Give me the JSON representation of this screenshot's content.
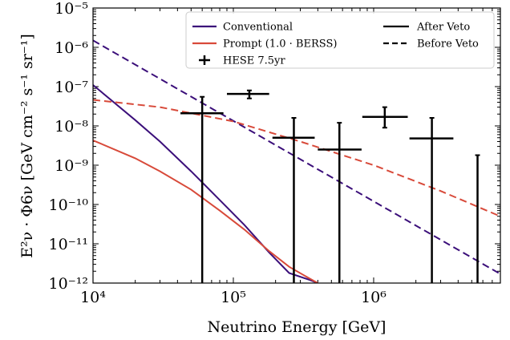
{
  "chart_data": {
    "type": "line",
    "x_scale": "log",
    "y_scale": "log",
    "xlim": [
      10000,
      8000000
    ],
    "ylim": [
      1e-12,
      1e-05
    ],
    "xlabel": "Neutrino Energy [GeV]",
    "ylabel": "E²ν · Φ6ν [GeV cm⁻² s⁻¹ sr⁻¹]",
    "x_ticks": [
      {
        "value": 10000,
        "label": "10⁴"
      },
      {
        "value": 100000,
        "label": "10⁵"
      },
      {
        "value": 1000000,
        "label": "10⁶"
      }
    ],
    "y_ticks": [
      {
        "value": 1e-12,
        "label": "10⁻¹²"
      },
      {
        "value": 1e-11,
        "label": "10⁻¹¹"
      },
      {
        "value": 1e-10,
        "label": "10⁻¹⁰"
      },
      {
        "value": 1e-09,
        "label": "10⁻⁹"
      },
      {
        "value": 1e-08,
        "label": "10⁻⁸"
      },
      {
        "value": 1e-07,
        "label": "10⁻⁷"
      },
      {
        "value": 1e-06,
        "label": "10⁻⁶"
      },
      {
        "value": 1e-05,
        "label": "10⁻⁵"
      }
    ],
    "legend_position": "top-right",
    "legend": [
      {
        "label": "Conventional",
        "kind": "line",
        "color": "#3b0f7a",
        "dash": false
      },
      {
        "label": "Prompt (1.0 · BERSS)",
        "kind": "line",
        "color": "#d84a3a",
        "dash": false
      },
      {
        "label": "HESE 7.5yr",
        "kind": "errorbar",
        "color": "#000000",
        "dash": false
      },
      {
        "label": "After Veto",
        "kind": "line",
        "color": "#000000",
        "dash": false
      },
      {
        "label": "Before Veto",
        "kind": "line",
        "color": "#000000",
        "dash": true
      }
    ],
    "series": [
      {
        "name": "Conventional",
        "variant": "After Veto",
        "color": "#3b0f7a",
        "dash": false,
        "x": [
          10000,
          20000,
          30000,
          50000,
          80000,
          120000,
          180000,
          250000,
          350000,
          400000
        ],
        "y": [
          1.1e-07,
          1.4e-08,
          4e-09,
          7e-10,
          1.3e-10,
          3e-11,
          6e-12,
          1.8e-12,
          1.2e-12,
          1e-12
        ]
      },
      {
        "name": "Conventional",
        "variant": "Before Veto",
        "color": "#3b0f7a",
        "dash": true,
        "x": [
          10000,
          8000000
        ],
        "y": [
          1.5e-06,
          1.7e-12
        ]
      },
      {
        "name": "Prompt (1.0 · BERSS)",
        "variant": "After Veto",
        "color": "#d84a3a",
        "dash": false,
        "x": [
          10000,
          20000,
          30000,
          50000,
          80000,
          120000,
          180000,
          250000,
          350000,
          400000
        ],
        "y": [
          4.3e-09,
          1.5e-09,
          7e-10,
          2.4e-10,
          7e-11,
          2.3e-11,
          6.5e-12,
          2.6e-12,
          1.3e-12,
          1e-12
        ]
      },
      {
        "name": "Prompt (1.0 · BERSS)",
        "variant": "Before Veto",
        "color": "#d84a3a",
        "dash": true,
        "x": [
          10000,
          30000,
          100000,
          300000,
          1000000,
          3000000,
          8000000
        ],
        "y": [
          4.6e-08,
          3e-08,
          1.3e-08,
          4e-09,
          1e-09,
          2.2e-10,
          5e-11
        ]
      }
    ],
    "hese_points": [
      {
        "x": 60000,
        "x_lo": 42000,
        "x_hi": 85000,
        "y": 2.1e-08,
        "y_lo": 1e-12,
        "y_hi": 5.5e-08
      },
      {
        "x": 130000,
        "x_lo": 90000,
        "x_hi": 180000,
        "y": 6.5e-08,
        "y_lo": 5e-08,
        "y_hi": 8e-08
      },
      {
        "x": 270000,
        "x_lo": 190000,
        "x_hi": 380000,
        "y": 5e-09,
        "y_lo": 1e-12,
        "y_hi": 1.6e-08
      },
      {
        "x": 570000,
        "x_lo": 400000,
        "x_hi": 820000,
        "y": 2.5e-09,
        "y_lo": 1e-12,
        "y_hi": 1.2e-08
      },
      {
        "x": 1200000,
        "x_lo": 830000,
        "x_hi": 1750000,
        "y": 1.7e-08,
        "y_lo": 9e-09,
        "y_hi": 3e-08
      },
      {
        "x": 2600000,
        "x_lo": 1800000,
        "x_hi": 3700000,
        "y": 4.8e-09,
        "y_lo": 1e-12,
        "y_hi": 1.6e-08
      },
      {
        "x": 5500000,
        "x_lo": 5500000,
        "x_hi": 5500000,
        "y": 1.8e-09,
        "y_lo": 1e-12,
        "y_hi": 1.8e-09
      }
    ]
  }
}
